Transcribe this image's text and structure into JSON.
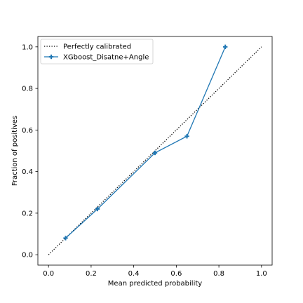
{
  "chart_data": {
    "type": "line",
    "title": "",
    "xlabel": "Mean predicted probability",
    "ylabel": "Fraction of positives",
    "xlim": [
      -0.05,
      1.05
    ],
    "ylim": [
      -0.05,
      1.05
    ],
    "xticks": [
      0.0,
      0.2,
      0.4,
      0.6,
      0.8,
      1.0
    ],
    "yticks": [
      0.0,
      0.2,
      0.4,
      0.6,
      0.8,
      1.0
    ],
    "xtick_labels": [
      "0.0",
      "0.2",
      "0.4",
      "0.6",
      "0.8",
      "1.0"
    ],
    "ytick_labels": [
      "0.0",
      "0.2",
      "0.4",
      "0.6",
      "0.8",
      "1.0"
    ],
    "grid": false,
    "legend_position": "upper-left",
    "series": [
      {
        "name": "Perfectly calibrated",
        "style": "dotted",
        "color": "#000000",
        "x": [
          0.0,
          1.0
        ],
        "y": [
          0.0,
          1.0
        ]
      },
      {
        "name": "XGboost_Disatne+Angle",
        "style": "solid",
        "marker": "plus",
        "color": "#1f77b4",
        "x": [
          0.08,
          0.23,
          0.5,
          0.65,
          0.83
        ],
        "y": [
          0.08,
          0.22,
          0.49,
          0.57,
          1.0
        ]
      }
    ]
  }
}
